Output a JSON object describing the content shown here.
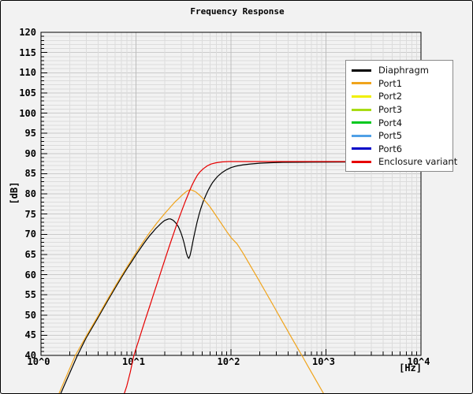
{
  "title": "Frequency Response",
  "axes": {
    "x": {
      "unit_label": "[Hz]",
      "scale": "log",
      "min_exp": 0,
      "max_exp": 4,
      "tick_labels": [
        "10^0",
        "10^1",
        "10^2",
        "10^3",
        "10^4"
      ]
    },
    "y": {
      "unit_label": "[dB]",
      "min": 40,
      "max": 120,
      "major_step": 5,
      "minor_step": 1,
      "tick_labels": [
        "120",
        "115",
        "110",
        "105",
        "100",
        "95",
        "90",
        "85",
        "80",
        "75",
        "70",
        "65",
        "60",
        "55",
        "50",
        "45",
        "40"
      ]
    }
  },
  "legend": {
    "position": "top-right",
    "items": [
      {
        "label": "Diaphragm",
        "color": "#000000"
      },
      {
        "label": "Port1",
        "color": "#f0a41c"
      },
      {
        "label": "Port2",
        "color": "#f0f000"
      },
      {
        "label": "Port3",
        "color": "#a8dc14"
      },
      {
        "label": "Port4",
        "color": "#00c81e"
      },
      {
        "label": "Port5",
        "color": "#50a0e6"
      },
      {
        "label": "Port6",
        "color": "#0000c8"
      },
      {
        "label": "Enclosure variant",
        "color": "#e60000"
      }
    ]
  },
  "plot_theme": {
    "background": "#f2f2f2",
    "grid_minor": "#dcdcdc",
    "grid_major": "#cbcbcb",
    "grid_decade": "#bdbdbd",
    "frame": "#000000",
    "legend_bg": "#ffffff",
    "legend_border": "#8a8a8a"
  },
  "chart_data": {
    "type": "line",
    "title": "Frequency Response",
    "xlabel": "[Hz]",
    "ylabel": "[dB]",
    "x_scale": "log",
    "xlim": [
      1,
      10000
    ],
    "ylim": [
      40,
      120
    ],
    "grid": true,
    "legend_position": "top-right",
    "note_visible_series": "Only Diaphragm, Port1 and Enclosure variant curves are plotted; Port2-Port6 appear in legend only",
    "series": [
      {
        "name": "Diaphragm",
        "color": "#000000",
        "points": [
          [
            1.55,
            29.6
          ],
          [
            2.4,
            39.8
          ],
          [
            3,
            44.4
          ],
          [
            4,
            49.4
          ],
          [
            5,
            53.4
          ],
          [
            6,
            56.6
          ],
          [
            7,
            59.2
          ],
          [
            8,
            61.4
          ],
          [
            9,
            63.2
          ],
          [
            10,
            64.9
          ],
          [
            11,
            66.3
          ],
          [
            12,
            67.6
          ],
          [
            13,
            68.7
          ],
          [
            14,
            69.7
          ],
          [
            15,
            70.5
          ],
          [
            16,
            71.3
          ],
          [
            17,
            71.9
          ],
          [
            18,
            72.5
          ],
          [
            19,
            73.0
          ],
          [
            20,
            73.4
          ],
          [
            21,
            73.6
          ],
          [
            22,
            73.8
          ],
          [
            23,
            73.8
          ],
          [
            24,
            73.6
          ],
          [
            25,
            73.3
          ],
          [
            26,
            72.9
          ],
          [
            27,
            72.4
          ],
          [
            28,
            71.8
          ],
          [
            29,
            71.0
          ],
          [
            30,
            70.1
          ],
          [
            31,
            69.1
          ],
          [
            32,
            67.9
          ],
          [
            33,
            66.6
          ],
          [
            34,
            65.3
          ],
          [
            35,
            64.4
          ],
          [
            36,
            64.0
          ],
          [
            37,
            64.7
          ],
          [
            38,
            65.9
          ],
          [
            39,
            67.2
          ],
          [
            40,
            68.5
          ],
          [
            42,
            70.9
          ],
          [
            44,
            73.0
          ],
          [
            46,
            74.8
          ],
          [
            48,
            76.3
          ],
          [
            51,
            78.1
          ],
          [
            54,
            79.5
          ],
          [
            57,
            80.7
          ],
          [
            60,
            81.7
          ],
          [
            64,
            82.8
          ],
          [
            68,
            83.6
          ],
          [
            73,
            84.4
          ],
          [
            80,
            85.2
          ],
          [
            90,
            86.0
          ],
          [
            100,
            86.5
          ],
          [
            115,
            86.9
          ],
          [
            135,
            87.2
          ],
          [
            160,
            87.4
          ],
          [
            200,
            87.6
          ],
          [
            260,
            87.7
          ],
          [
            350,
            87.8
          ],
          [
            700,
            87.85
          ],
          [
            3000,
            87.9
          ],
          [
            10000,
            87.9
          ]
        ]
      },
      {
        "name": "Port1",
        "color": "#f0a41c",
        "points": [
          [
            1.5,
            29.8
          ],
          [
            2.3,
            40.0
          ],
          [
            3,
            44.8
          ],
          [
            4,
            49.8
          ],
          [
            5,
            53.8
          ],
          [
            6,
            57.0
          ],
          [
            7,
            59.6
          ],
          [
            8,
            61.8
          ],
          [
            9,
            63.7
          ],
          [
            10,
            65.4
          ],
          [
            11,
            66.9
          ],
          [
            12,
            68.2
          ],
          [
            13,
            69.4
          ],
          [
            14,
            70.5
          ],
          [
            15,
            71.4
          ],
          [
            16,
            72.3
          ],
          [
            17,
            73.1
          ],
          [
            18,
            73.8
          ],
          [
            20,
            75.1
          ],
          [
            22,
            76.2
          ],
          [
            24,
            77.2
          ],
          [
            26,
            78.1
          ],
          [
            28,
            78.8
          ],
          [
            30,
            79.5
          ],
          [
            32,
            80.1
          ],
          [
            34,
            80.6
          ],
          [
            36,
            80.9
          ],
          [
            38,
            81.0
          ],
          [
            40,
            80.8
          ],
          [
            43,
            80.4
          ],
          [
            46,
            79.8
          ],
          [
            50,
            79.0
          ],
          [
            55,
            77.9
          ],
          [
            60,
            76.8
          ],
          [
            66,
            75.4
          ],
          [
            73,
            73.9
          ],
          [
            80,
            72.5
          ],
          [
            90,
            70.7
          ],
          [
            100,
            69.2
          ],
          [
            116,
            67.6
          ],
          [
            135,
            65.2
          ],
          [
            160,
            62.2
          ],
          [
            190,
            59.2
          ],
          [
            230,
            55.8
          ],
          [
            280,
            52.3
          ],
          [
            340,
            48.8
          ],
          [
            420,
            45.0
          ],
          [
            500,
            41.9
          ],
          [
            560,
            39.9
          ],
          [
            650,
            37.2
          ],
          [
            800,
            33.5
          ],
          [
            1000,
            29.5
          ]
        ]
      },
      {
        "name": "Enclosure variant",
        "color": "#e60000",
        "points": [
          [
            7.4,
            30.0
          ],
          [
            8,
            32.4
          ],
          [
            8.7,
            35.8
          ],
          [
            9.5,
            40.0
          ],
          [
            10.5,
            43.2
          ],
          [
            11.5,
            46.1
          ],
          [
            12.5,
            48.8
          ],
          [
            14,
            52.3
          ],
          [
            15.5,
            55.5
          ],
          [
            17,
            58.4
          ],
          [
            19,
            61.9
          ],
          [
            21,
            65.0
          ],
          [
            23,
            67.8
          ],
          [
            25,
            70.3
          ],
          [
            27,
            72.6
          ],
          [
            29,
            74.6
          ],
          [
            31,
            76.4
          ],
          [
            33,
            78.1
          ],
          [
            35,
            79.6
          ],
          [
            37,
            81.0
          ],
          [
            39,
            82.2
          ],
          [
            41,
            83.2
          ],
          [
            44,
            84.5
          ],
          [
            47,
            85.4
          ],
          [
            51,
            86.2
          ],
          [
            56,
            86.9
          ],
          [
            62,
            87.4
          ],
          [
            70,
            87.7
          ],
          [
            80,
            87.9
          ],
          [
            95,
            88.0
          ],
          [
            130,
            88.0
          ],
          [
            300,
            88.0
          ],
          [
            2000,
            88.0
          ],
          [
            10000,
            88.0
          ]
        ]
      }
    ]
  }
}
